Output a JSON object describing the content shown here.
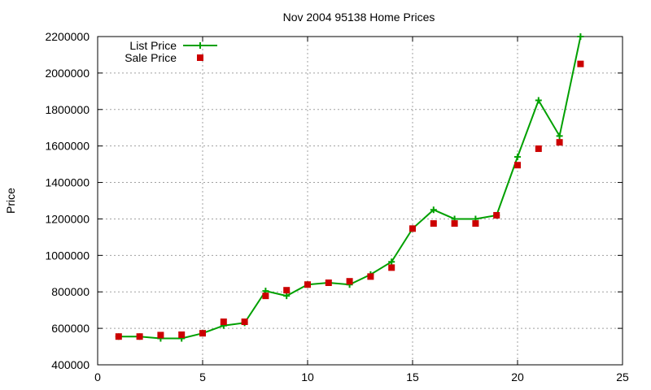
{
  "chart_data": {
    "type": "line",
    "title": "Nov 2004 95138 Home Prices",
    "xlabel": "",
    "ylabel": "Price",
    "xlim": [
      0,
      25
    ],
    "ylim": [
      400000,
      2200000
    ],
    "x_ticks": [
      0,
      5,
      10,
      15,
      20,
      25
    ],
    "y_ticks": [
      400000,
      600000,
      800000,
      1000000,
      1200000,
      1400000,
      1600000,
      1800000,
      2000000,
      2200000
    ],
    "grid": true,
    "legend_position": "top-left",
    "x": [
      1,
      2,
      3,
      4,
      5,
      6,
      7,
      8,
      9,
      10,
      11,
      12,
      13,
      14,
      15,
      16,
      17,
      18,
      19,
      20,
      21,
      22,
      23
    ],
    "series": [
      {
        "name": "List Price",
        "style": "line+cross",
        "color": "#00a000",
        "values": [
          555000,
          555000,
          545000,
          545000,
          573000,
          615000,
          630000,
          805000,
          778000,
          840000,
          850000,
          840000,
          895000,
          965000,
          1147000,
          1250000,
          1200000,
          1200000,
          1220000,
          1540000,
          1850000,
          1655000,
          2200000
        ]
      },
      {
        "name": "Sale Price",
        "style": "square-markers",
        "color": "#cc0000",
        "values": [
          555000,
          555000,
          563000,
          565000,
          573000,
          636000,
          636000,
          778000,
          809000,
          840000,
          850000,
          858000,
          884000,
          933000,
          1147000,
          1175000,
          1175000,
          1175000,
          1220000,
          1495000,
          1585000,
          1620000,
          2050000
        ]
      }
    ]
  }
}
